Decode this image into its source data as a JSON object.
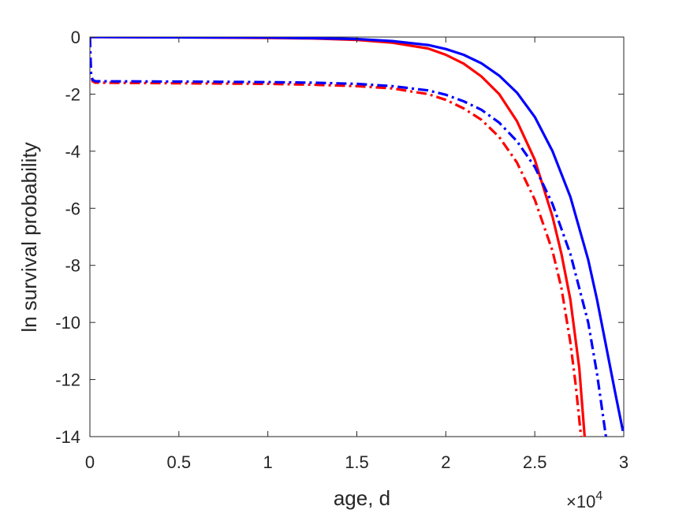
{
  "chart_data": {
    "type": "line",
    "xlabel": "age, d",
    "ylabel": "ln survival probability",
    "x_exponent": {
      "base": "×10",
      "power": "4"
    },
    "xlim": [
      0,
      30000
    ],
    "ylim": [
      -14,
      0
    ],
    "xticks": [
      0,
      5000,
      10000,
      15000,
      20000,
      25000,
      30000
    ],
    "xtick_labels": [
      "0",
      "0.5",
      "1",
      "1.5",
      "2",
      "2.5",
      "3"
    ],
    "yticks": [
      0,
      -2,
      -4,
      -6,
      -8,
      -10,
      -12,
      -14
    ],
    "ytick_labels": [
      "0",
      "-2",
      "-4",
      "-6",
      "-8",
      "-10",
      "-12",
      "-14"
    ],
    "grid": false,
    "legend": "none",
    "series": [
      {
        "color": "#ff0000",
        "style": "solid",
        "x": [
          0,
          5000,
          10000,
          12500,
          15000,
          17000,
          19000,
          20000,
          21000,
          22000,
          23000,
          24000,
          25000,
          26000,
          26500,
          27000,
          27500,
          27800
        ],
        "y": [
          0,
          -0.01,
          -0.03,
          -0.05,
          -0.1,
          -0.2,
          -0.4,
          -0.62,
          -0.93,
          -1.38,
          -2.0,
          -2.95,
          -4.3,
          -6.3,
          -7.6,
          -9.2,
          -11.6,
          -14
        ]
      },
      {
        "color": "#0000ff",
        "style": "solid",
        "x": [
          0,
          5000,
          10000,
          12500,
          15000,
          17000,
          19000,
          20000,
          21000,
          22000,
          23000,
          24000,
          25000,
          26000,
          27000,
          28000,
          28500,
          29000,
          29500,
          29950
        ],
        "y": [
          0,
          -0.01,
          -0.02,
          -0.04,
          -0.07,
          -0.14,
          -0.28,
          -0.42,
          -0.62,
          -0.92,
          -1.35,
          -1.95,
          -2.8,
          -4.0,
          -5.6,
          -7.8,
          -9.2,
          -10.8,
          -12.4,
          -13.8
        ]
      },
      {
        "color": "#ff0000",
        "style": "dashdot",
        "x": [
          0,
          60,
          150,
          300,
          5000,
          10000,
          12500,
          15000,
          17000,
          19000,
          20000,
          21000,
          22000,
          23000,
          24000,
          25000,
          26000,
          26500,
          27000,
          27300,
          27600
        ],
        "y": [
          0,
          -1.3,
          -1.55,
          -1.6,
          -1.62,
          -1.64,
          -1.67,
          -1.72,
          -1.8,
          -2.0,
          -2.2,
          -2.5,
          -2.9,
          -3.5,
          -4.4,
          -5.7,
          -7.5,
          -8.8,
          -10.7,
          -12.2,
          -14
        ]
      },
      {
        "color": "#0000ff",
        "style": "dashdot",
        "x": [
          0,
          60,
          150,
          300,
          5000,
          10000,
          12500,
          15000,
          17000,
          19000,
          20000,
          21000,
          22000,
          23000,
          24000,
          25000,
          26000,
          27000,
          28000,
          28500,
          29000
        ],
        "y": [
          0,
          -1.25,
          -1.5,
          -1.55,
          -1.56,
          -1.58,
          -1.6,
          -1.64,
          -1.72,
          -1.87,
          -2.02,
          -2.25,
          -2.55,
          -3.0,
          -3.65,
          -4.55,
          -5.85,
          -7.6,
          -10.0,
          -11.8,
          -14
        ]
      }
    ]
  }
}
